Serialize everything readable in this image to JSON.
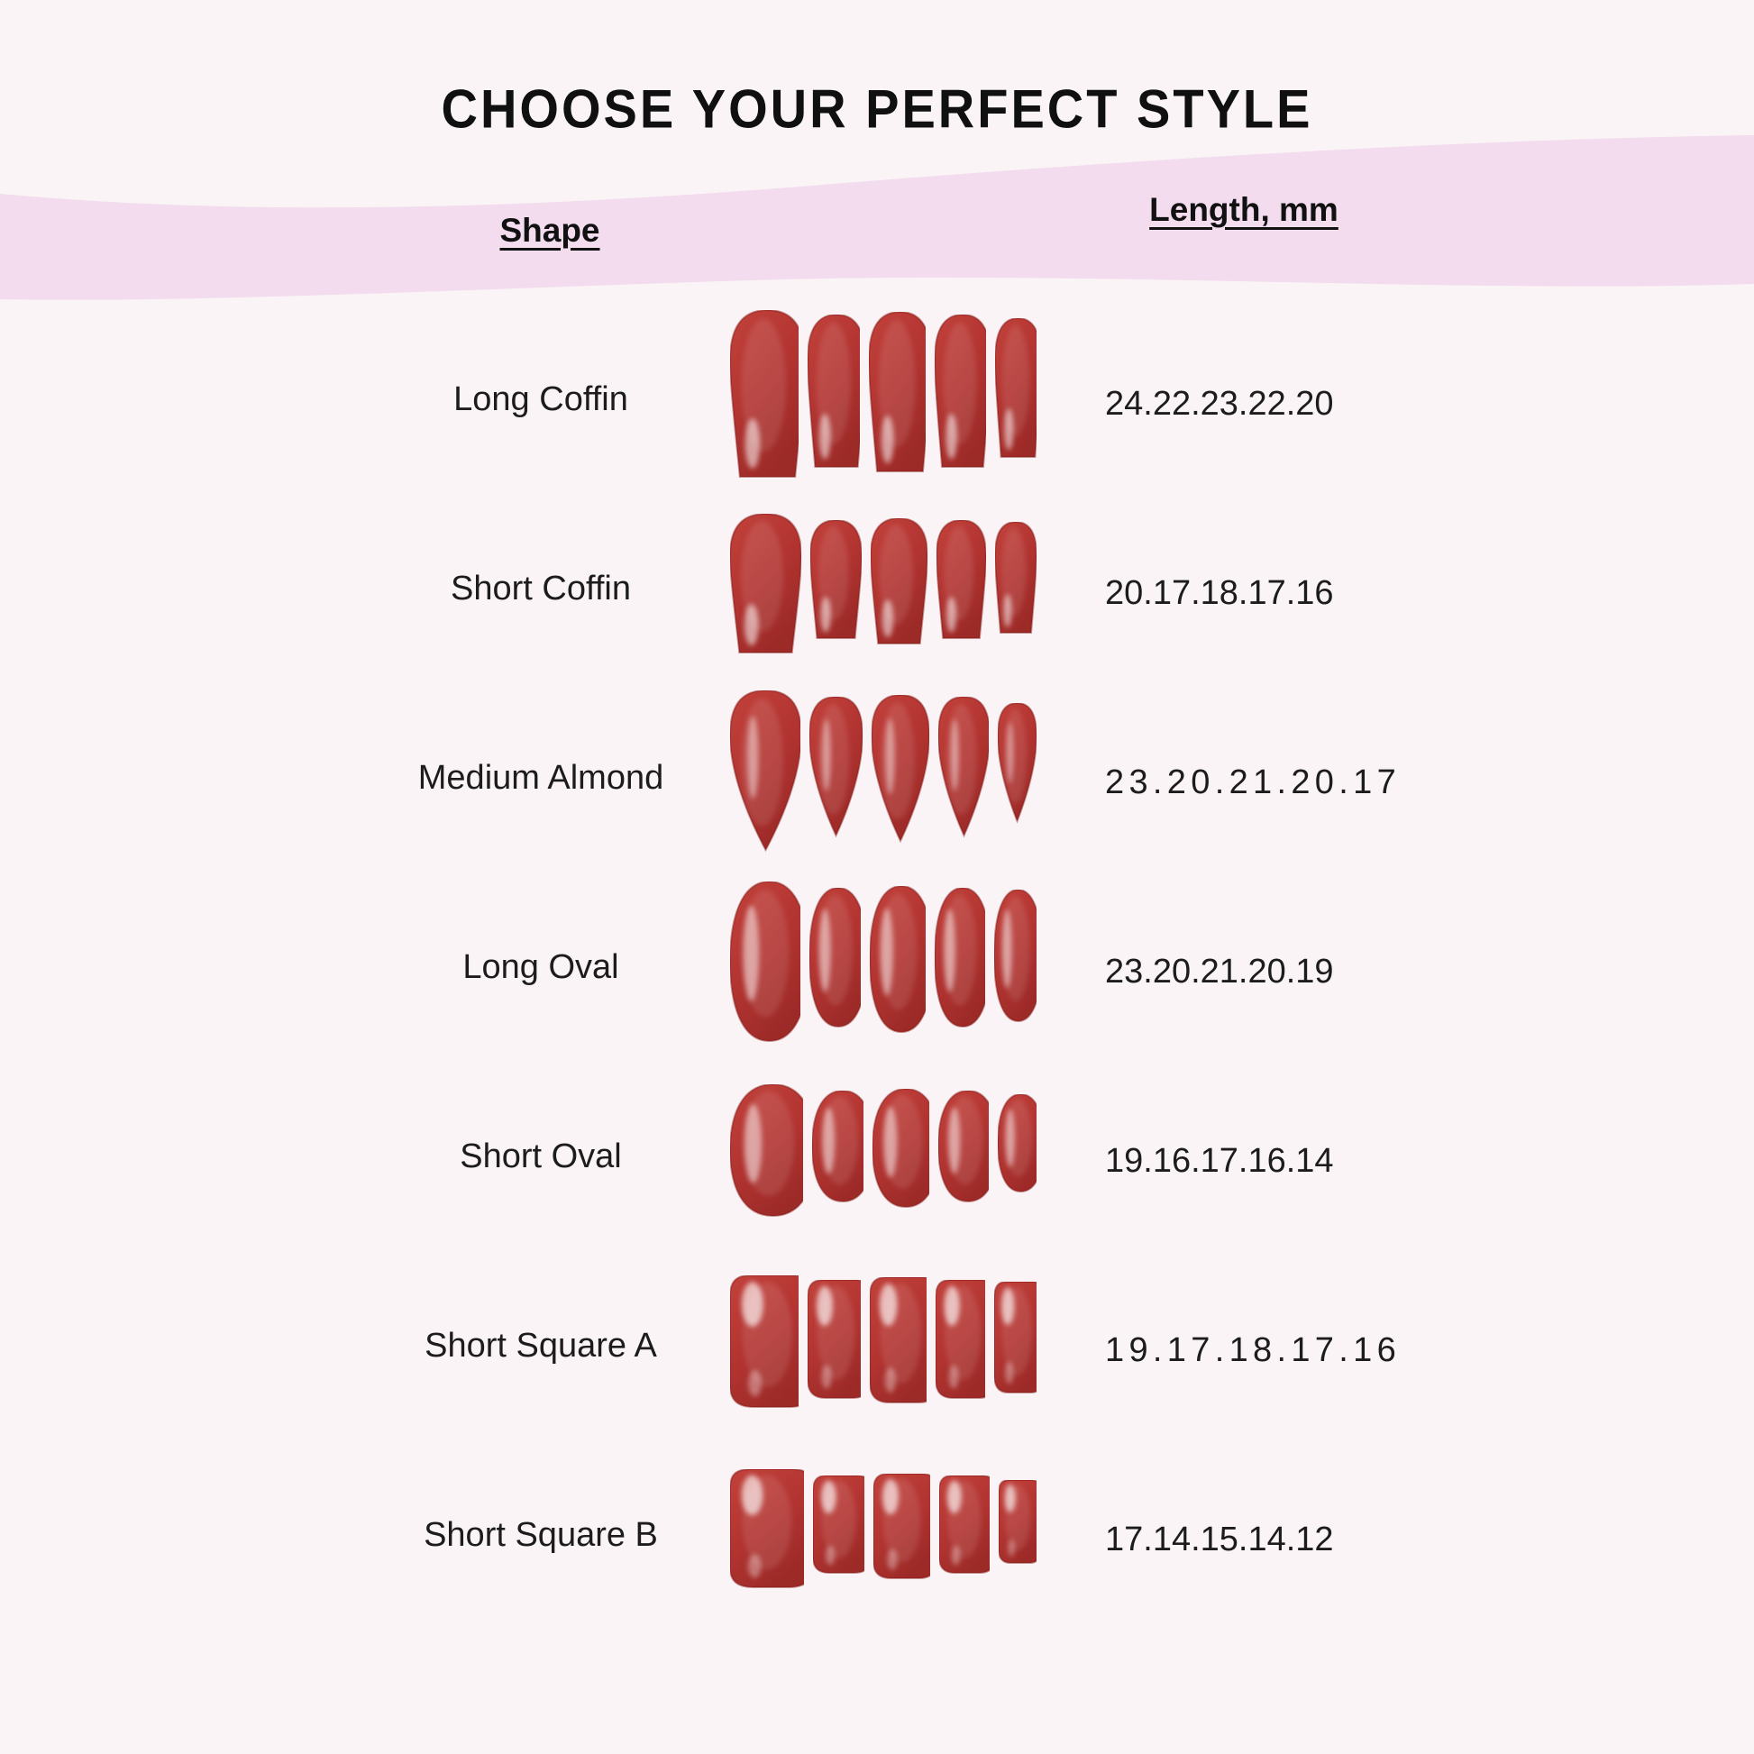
{
  "title": "CHOOSE YOUR PERFECT STYLE",
  "table": {
    "shape_header": "Shape",
    "length_header": "Length, mm",
    "rows": [
      {
        "shape": "Long Coffin",
        "lengths": "24.22.23.22.20",
        "style": "coffin"
      },
      {
        "shape": "Short Coffin",
        "lengths": "20.17.18.17.16",
        "style": "coffin"
      },
      {
        "shape": "Medium Almond",
        "lengths": "23.20.21.20.17",
        "style": "almond"
      },
      {
        "shape": "Long Oval",
        "lengths": "23.20.21.20.19",
        "style": "oval"
      },
      {
        "shape": "Short Oval",
        "lengths": "19.16.17.16.14",
        "style": "oval"
      },
      {
        "shape": "Short Square A",
        "lengths": "19.17.18.17.16",
        "style": "square"
      },
      {
        "shape": "Short Square B",
        "lengths": "17.14.15.14.12",
        "style": "square"
      }
    ]
  },
  "colors": {
    "background": "#faf4f6",
    "band_pink": "#f2dcee",
    "text": "#111111",
    "nail_red_light": "#c2413b",
    "nail_red": "#b23431",
    "nail_red_dark": "#9c2a27",
    "nail_rim": "#82191680",
    "nail_highlight": "#ffffff"
  }
}
